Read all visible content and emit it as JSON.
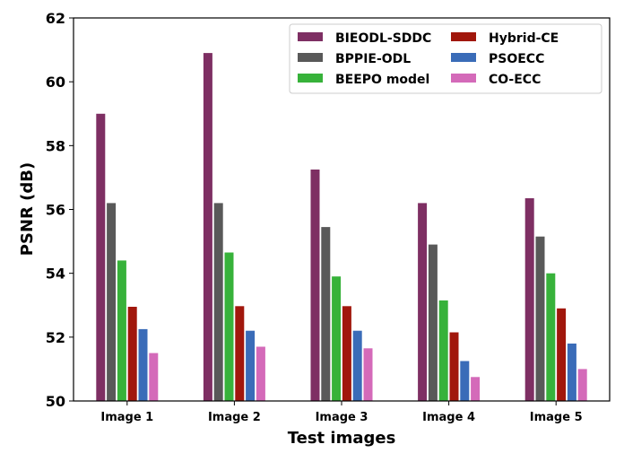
{
  "chart_data": {
    "type": "bar",
    "xlabel": "Test images",
    "ylabel": "PSNR (dB)",
    "ylim": [
      50,
      62
    ],
    "yticks": [
      50,
      52,
      54,
      56,
      58,
      60,
      62
    ],
    "categories": [
      "Image 1",
      "Image 2",
      "Image 3",
      "Image 4",
      "Image 5"
    ],
    "legend_position": "top-right",
    "grid": false,
    "series": [
      {
        "name": "BIEODL-SDDC",
        "color": "#7e2f63",
        "values": [
          59.0,
          60.9,
          57.25,
          56.2,
          56.35
        ]
      },
      {
        "name": "BPPIE-ODL",
        "color": "#595959",
        "values": [
          56.2,
          56.2,
          55.45,
          54.9,
          55.15
        ]
      },
      {
        "name": "BEEPO model",
        "color": "#37b23a",
        "values": [
          54.4,
          54.65,
          53.9,
          53.15,
          54.0
        ]
      },
      {
        "name": "Hybrid-CE",
        "color": "#a1170c",
        "values": [
          52.95,
          52.97,
          52.97,
          52.15,
          52.9
        ]
      },
      {
        "name": "PSOECC",
        "color": "#3a6cb8",
        "values": [
          52.25,
          52.2,
          52.2,
          51.25,
          51.8
        ]
      },
      {
        "name": "CO-ECC",
        "color": "#d46ab9",
        "values": [
          51.5,
          51.7,
          51.65,
          50.75,
          51.0
        ]
      }
    ]
  }
}
